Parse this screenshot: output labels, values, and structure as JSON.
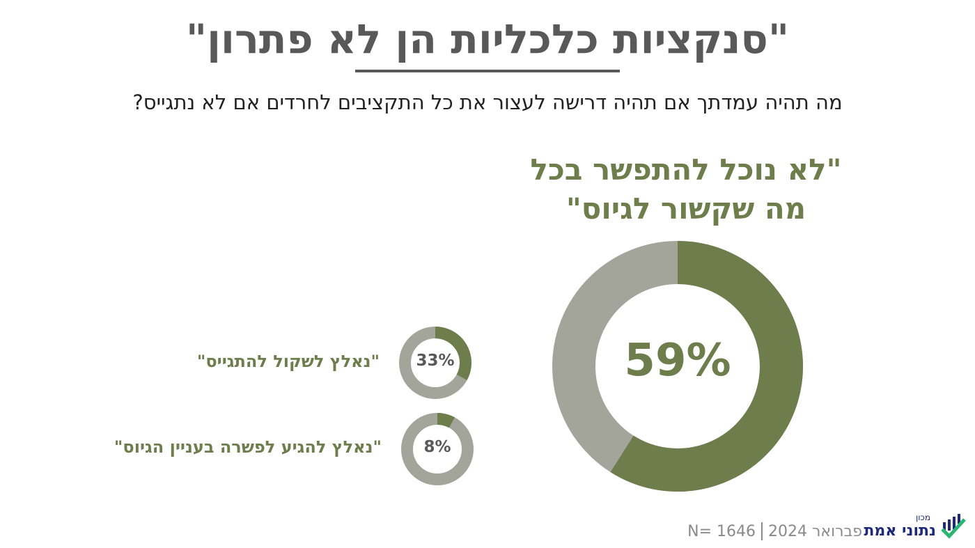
{
  "header": {
    "title": "\"סנקציות כלכליות הן לא פתרון\"",
    "subtitle": "מה תהיה עמדתך אם תהיה דרישה לעצור את כל התקציבים לחרדים אם לא נתגייס?"
  },
  "chart_data": [
    {
      "type": "donut",
      "title_lines": [
        "\"לא נוכל להתפשר בכל",
        "מה שקשור לגיוס\""
      ],
      "values": [
        59
      ],
      "value_labels": [
        "59%"
      ],
      "color": "#6e7d4c",
      "track_color": "#a3a59b"
    },
    {
      "type": "donut",
      "title": "\"נאלץ לשקול להתגייס\"",
      "values": [
        33
      ],
      "value_labels": [
        "33%"
      ],
      "color": "#6e7d4c",
      "track_color": "#a3a59b"
    },
    {
      "type": "donut",
      "title": "\"נאלץ להגיע לפשרה בעניין הגיוס\"",
      "values": [
        8
      ],
      "value_labels": [
        "8%"
      ],
      "color": "#6e7d4c",
      "track_color": "#a3a59b"
    }
  ],
  "footer": {
    "date": "פברואר 2024",
    "sample": "N= 1646"
  },
  "logo": {
    "small": "מכון",
    "name": "נתוני אמת"
  }
}
